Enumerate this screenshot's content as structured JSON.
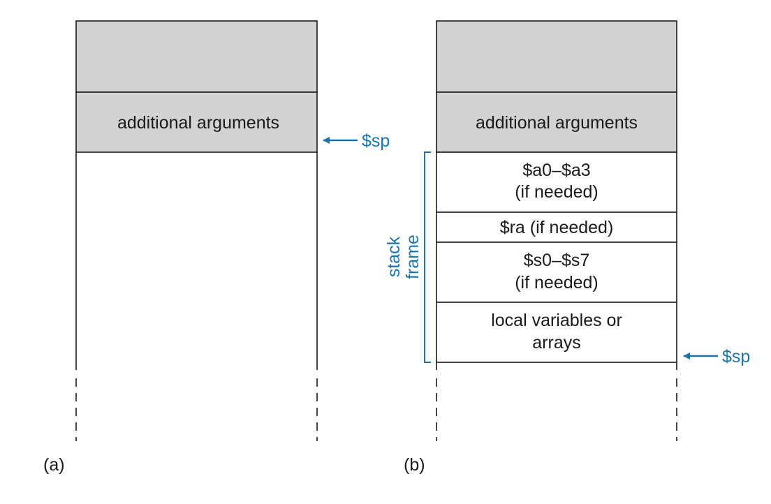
{
  "colors": {
    "shaded_fill": "#d3d3d3",
    "outline": "#1a1a1a",
    "accent": "#1b75a8"
  },
  "panel_a": {
    "caption": "(a)",
    "additional_arguments": "additional arguments",
    "sp_label": "$sp"
  },
  "panel_b": {
    "caption": "(b)",
    "additional_arguments": "additional arguments",
    "a_regs_line1": "$a0–$a3",
    "a_regs_line2": "(if needed)",
    "ra_line": "$ra (if needed)",
    "s_regs_line1": "$s0–$s7",
    "s_regs_line2": "(if needed)",
    "locals_line1": "local variables or",
    "locals_line2": "arrays",
    "sp_label": "$sp",
    "frame_label_line1": "stack",
    "frame_label_line2": "frame"
  }
}
